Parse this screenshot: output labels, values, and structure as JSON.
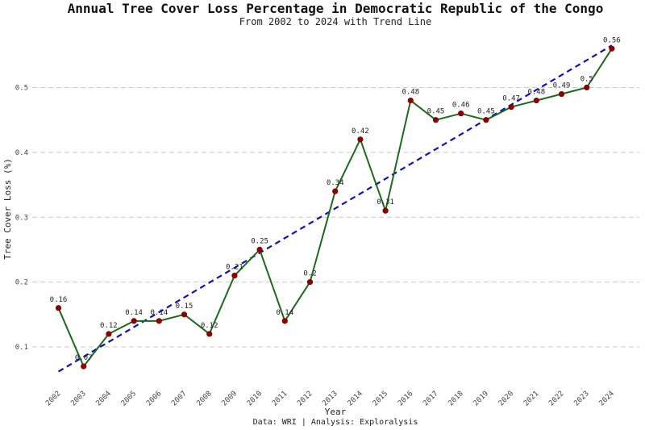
{
  "chart_data": {
    "type": "line",
    "title": "Annual Tree Cover Loss Percentage in Democratic Republic of the Congo",
    "subtitle": "From 2002 to 2024 with Trend Line",
    "xlabel": "Year",
    "ylabel": "Tree Cover Loss (%)",
    "caption": "Data: WRI | Analysis: Exploralysis",
    "x": [
      "2002",
      "2003",
      "2004",
      "2005",
      "2006",
      "2007",
      "2008",
      "2009",
      "2010",
      "2011",
      "2012",
      "2013",
      "2014",
      "2015",
      "2016",
      "2017",
      "2018",
      "2019",
      "2020",
      "2021",
      "2022",
      "2023",
      "2024"
    ],
    "series": [
      {
        "values": [
          0.16,
          0.07,
          0.12,
          0.14,
          0.14,
          0.15,
          0.12,
          0.21,
          0.25,
          0.14,
          0.2,
          0.34,
          0.42,
          0.31,
          0.48,
          0.45,
          0.46,
          0.45,
          0.47,
          0.48,
          0.49,
          0.5,
          0.56
        ],
        "labels": [
          "0.16",
          "0.07",
          "0.12",
          "0.14",
          "0.14",
          "0.15",
          "0.12",
          "0.21",
          "0.25",
          "0.14",
          "0.2",
          "0.34",
          "0.42",
          "0.31",
          "0.48",
          "0.45",
          "0.46",
          "0.45",
          "0.47",
          "0.48",
          "0.49",
          "0.5",
          "0.56"
        ],
        "color": "#1a6b1a",
        "marker_color": "#8b0000"
      }
    ],
    "trend": {
      "start": 0.062,
      "end": 0.565,
      "color": "#1111bb",
      "style": "dashed"
    },
    "yticks": [
      "0.1",
      "0.2",
      "0.3",
      "0.4",
      "0.5"
    ],
    "ylim": [
      0.04,
      0.6
    ],
    "grid": "horizontal dashed",
    "legend": "none"
  }
}
